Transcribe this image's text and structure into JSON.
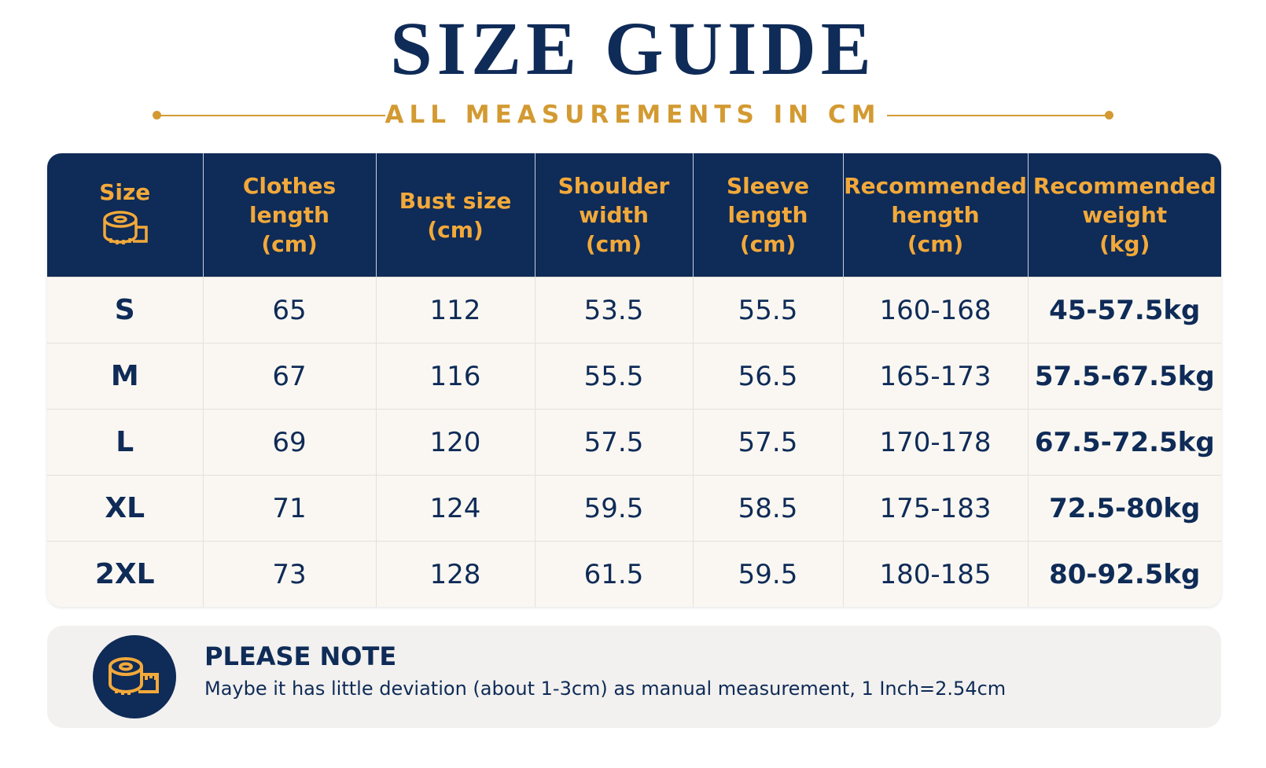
{
  "header": {
    "title": "SIZE GUIDE",
    "subtitle": "ALL MEASUREMENTS IN CM"
  },
  "table": {
    "columns": [
      [
        "Size"
      ],
      [
        "Clothes",
        "length",
        "(cm)"
      ],
      [
        "Bust size",
        "(cm)"
      ],
      [
        "Shoulder",
        "width",
        "(cm)"
      ],
      [
        "Sleeve",
        "length",
        "(cm)"
      ],
      [
        "Recommended",
        "hength",
        "(cm)"
      ],
      [
        "Recommended",
        "weight",
        "(kg)"
      ]
    ],
    "rows": [
      [
        "S",
        65,
        112,
        53.5,
        55.5,
        "160-168",
        "45-57.5kg"
      ],
      [
        "M",
        67,
        116,
        55.5,
        56.5,
        "165-173",
        "57.5-67.5kg"
      ],
      [
        "L",
        69,
        120,
        57.5,
        57.5,
        "170-178",
        "67.5-72.5kg"
      ],
      [
        "XL",
        71,
        124,
        59.5,
        58.5,
        "175-183",
        "72.5-80kg"
      ],
      [
        "2XL",
        73,
        128,
        61.5,
        59.5,
        "180-185",
        "80-92.5kg"
      ]
    ]
  },
  "note": {
    "title": "PLEASE NOTE",
    "text": "Maybe it has little deviation (about 1-3cm) as manual measurement, 1 Inch=2.54cm"
  }
}
